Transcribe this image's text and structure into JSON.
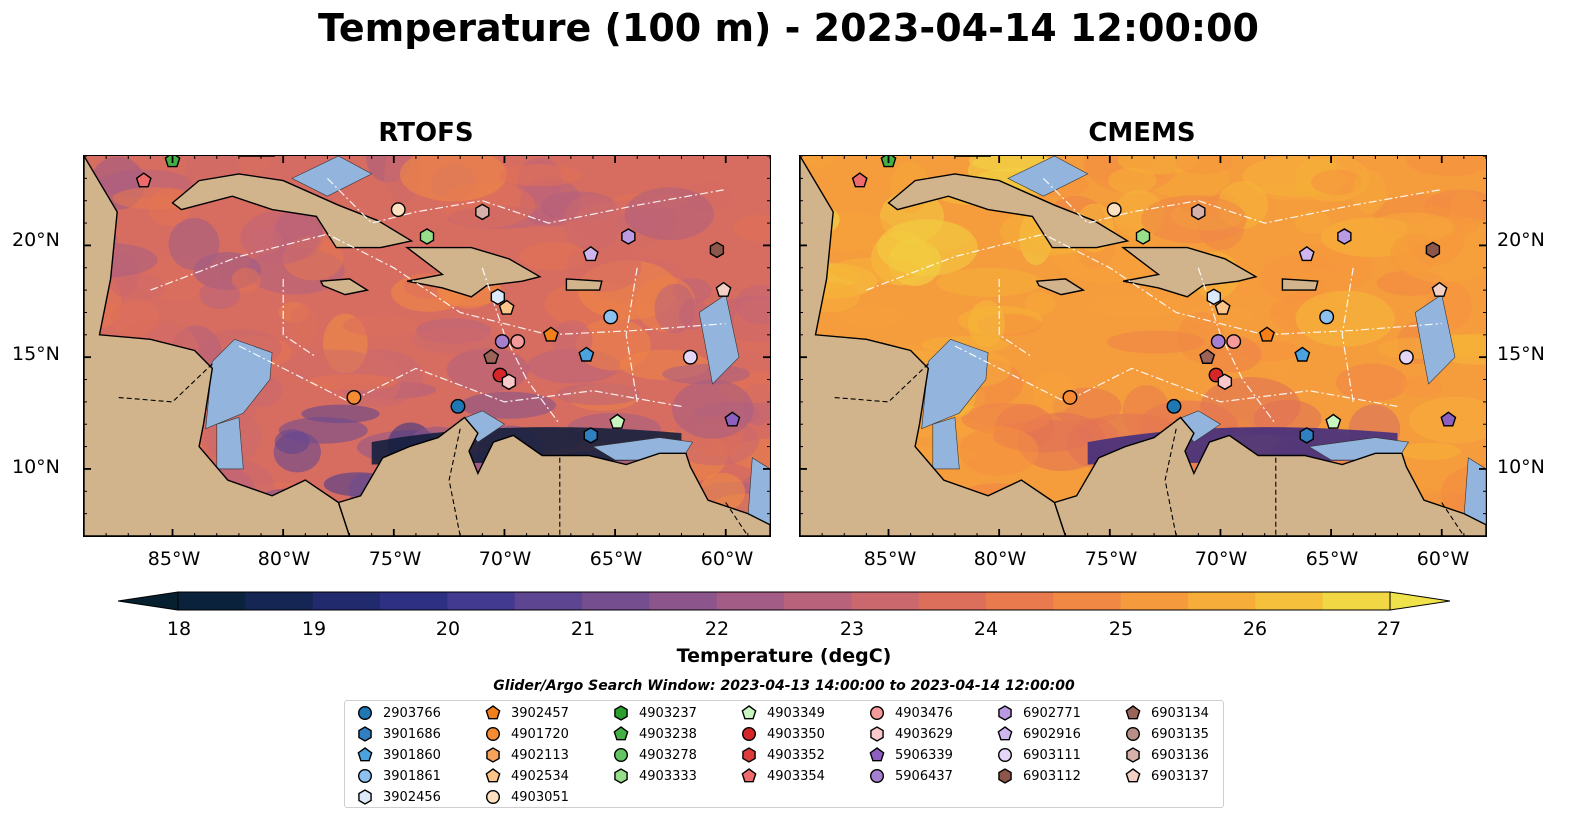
{
  "title": "Temperature (100 m) - 2023-04-14 12:00:00",
  "panels": [
    {
      "title": "RTOFS",
      "palette": "rtofs"
    },
    {
      "title": "CMEMS",
      "palette": "cmems"
    }
  ],
  "axes": {
    "lat_labels": [
      "20°N",
      "15°N",
      "10°N"
    ],
    "lon_labels": [
      "85°W",
      "80°W",
      "75°W",
      "70°W",
      "65°W",
      "60°W"
    ],
    "lat_range": [
      7,
      24
    ],
    "lon_range": [
      -89,
      -58
    ]
  },
  "colorbar": {
    "label": "Temperature (degC)",
    "ticks": [
      "18",
      "19",
      "20",
      "21",
      "22",
      "23",
      "24",
      "25",
      "26",
      "27"
    ],
    "range": [
      18,
      27
    ],
    "extend": "both"
  },
  "legend": {
    "title": "Glider/Argo Search Window: 2023-04-13 14:00:00 to 2023-04-14 12:00:00",
    "columns": [
      [
        {
          "id": "2903766",
          "shape": "circle",
          "color": "#1f77b4"
        },
        {
          "id": "3901686",
          "shape": "hexagon",
          "color": "#2f7fc1"
        },
        {
          "id": "3901860",
          "shape": "pentagon",
          "color": "#4aa3df"
        },
        {
          "id": "3901861",
          "shape": "circle",
          "color": "#8cc0ee"
        },
        {
          "id": "3902456",
          "shape": "hexagon",
          "color": "#dbe9fb"
        }
      ],
      [
        {
          "id": "3902457",
          "shape": "pentagon",
          "color": "#f37f1a"
        },
        {
          "id": "4901720",
          "shape": "circle",
          "color": "#f68b33"
        },
        {
          "id": "4902113",
          "shape": "hexagon",
          "color": "#f7a35c"
        },
        {
          "id": "4902534",
          "shape": "pentagon",
          "color": "#fbc58a"
        },
        {
          "id": "4903051",
          "shape": "circle",
          "color": "#fde0c0"
        }
      ],
      [
        {
          "id": "4903237",
          "shape": "hexagon",
          "color": "#2ca02c"
        },
        {
          "id": "4903238",
          "shape": "pentagon",
          "color": "#44b043"
        },
        {
          "id": "4903278",
          "shape": "circle",
          "color": "#62c462"
        },
        {
          "id": "4903333",
          "shape": "hexagon",
          "color": "#98de8a"
        }
      ],
      [
        {
          "id": "4903349",
          "shape": "pentagon",
          "color": "#c8f5c0"
        },
        {
          "id": "4903350",
          "shape": "circle",
          "color": "#d62728"
        },
        {
          "id": "4903352",
          "shape": "hexagon",
          "color": "#dd3c3c"
        },
        {
          "id": "4903354",
          "shape": "pentagon",
          "color": "#ef6b6b"
        }
      ],
      [
        {
          "id": "4903476",
          "shape": "circle",
          "color": "#f49a9a"
        },
        {
          "id": "4903629",
          "shape": "hexagon",
          "color": "#fbc9c9"
        },
        {
          "id": "5906339",
          "shape": "pentagon",
          "color": "#8c5fc1"
        },
        {
          "id": "5906437",
          "shape": "circle",
          "color": "#a77fd0"
        }
      ],
      [
        {
          "id": "6902771",
          "shape": "hexagon",
          "color": "#b99ae3"
        },
        {
          "id": "6902916",
          "shape": "pentagon",
          "color": "#cfb6ee"
        },
        {
          "id": "6903111",
          "shape": "circle",
          "color": "#e4d6f6"
        },
        {
          "id": "6903112",
          "shape": "hexagon",
          "color": "#8c564b"
        }
      ],
      [
        {
          "id": "6903134",
          "shape": "pentagon",
          "color": "#9c6459"
        },
        {
          "id": "6903135",
          "shape": "circle",
          "color": "#b78f86"
        },
        {
          "id": "6903136",
          "shape": "hexagon",
          "color": "#d7b1a9"
        },
        {
          "id": "6903137",
          "shape": "pentagon",
          "color": "#f3cfc5"
        }
      ]
    ]
  },
  "markers": [
    {
      "id": "2903766",
      "lon": -72.1,
      "lat": 12.8
    },
    {
      "id": "3901686",
      "lon": -66.1,
      "lat": 11.5
    },
    {
      "id": "3901860",
      "lon": -66.3,
      "lat": 15.1
    },
    {
      "id": "3901861",
      "lon": -65.2,
      "lat": 16.8
    },
    {
      "id": "3902456",
      "lon": -70.3,
      "lat": 17.7
    },
    {
      "id": "3902457",
      "lon": -67.9,
      "lat": 16.0
    },
    {
      "id": "4901720",
      "lon": -76.8,
      "lat": 13.2
    },
    {
      "id": "4903051",
      "lon": -74.8,
      "lat": 21.6
    },
    {
      "id": "4903238",
      "lon": -85.0,
      "lat": 23.8
    },
    {
      "id": "4903333",
      "lon": -73.5,
      "lat": 20.4
    },
    {
      "id": "4903349",
      "lon": -64.9,
      "lat": 12.1
    },
    {
      "id": "4903350",
      "lon": -70.2,
      "lat": 14.2
    },
    {
      "id": "4903354",
      "lon": -86.3,
      "lat": 22.9
    },
    {
      "id": "4903476",
      "lon": -69.4,
      "lat": 15.7
    },
    {
      "id": "4903629",
      "lon": -69.8,
      "lat": 13.9
    },
    {
      "id": "5906339",
      "lon": -59.7,
      "lat": 12.2
    },
    {
      "id": "5906437",
      "lon": -70.1,
      "lat": 15.7
    },
    {
      "id": "6902771",
      "lon": -64.4,
      "lat": 20.4
    },
    {
      "id": "6902916",
      "lon": -66.1,
      "lat": 19.6
    },
    {
      "id": "6903111",
      "lon": -61.6,
      "lat": 15.0
    },
    {
      "id": "6903112",
      "lon": -60.4,
      "lat": 19.8
    },
    {
      "id": "6903134",
      "lon": -70.6,
      "lat": 15.0
    },
    {
      "id": "6903136",
      "lon": -71.0,
      "lat": 21.5
    },
    {
      "id": "6903137",
      "lon": -60.1,
      "lat": 18.0
    },
    {
      "id": "4902534",
      "lon": -69.9,
      "lat": 17.2
    }
  ]
}
